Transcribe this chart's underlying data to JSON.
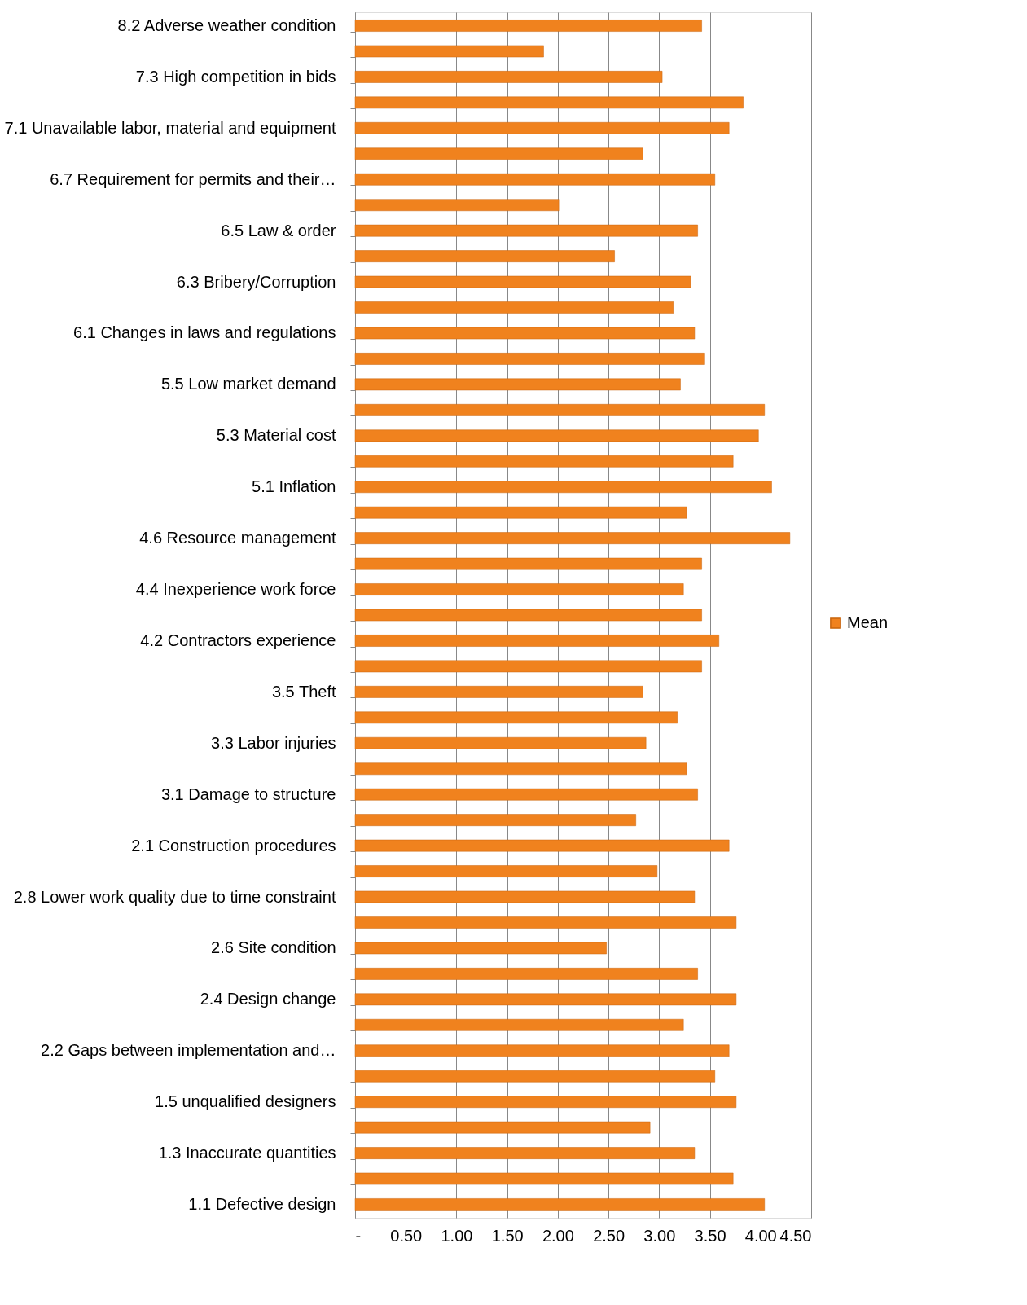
{
  "chart_data": {
    "type": "bar",
    "orientation": "horizontal",
    "categories": [
      "8.2 Adverse weather condition",
      null,
      "7.3 High competition in bids",
      null,
      "7.1 Unavailable labor, material and equipment",
      null,
      "6.7 Requirement for permits  and their…",
      null,
      "6.5 Law & order",
      null,
      "6.3 Bribery/Corruption",
      null,
      "6.1 Changes in laws and regulations",
      null,
      "5.5 Low market demand",
      null,
      "5.3 Material cost",
      null,
      "5.1 Inflation",
      null,
      "4.6 Resource management",
      null,
      "4.4 Inexperience work force",
      null,
      "4.2 Contractors experience",
      null,
      "3.5 Theft",
      null,
      "3.3 Labor injuries",
      null,
      "3.1 Damage to structure",
      null,
      "2.1 Construction procedures",
      null,
      "2.8 Lower work quality due  to time constraint",
      null,
      "2.6 Site condition",
      null,
      "2.4 Design change",
      null,
      "2.2 Gaps between implementation and…",
      null,
      "1.5 unqualified designers",
      null,
      "1.3 Inaccurate quantities",
      null,
      "1.1 Defective design"
    ],
    "series": [
      {
        "name": "Mean",
        "color": "#f0821e",
        "values": [
          3.42,
          1.86,
          3.03,
          3.83,
          3.69,
          2.84,
          3.55,
          2.01,
          3.38,
          2.56,
          3.31,
          3.14,
          3.35,
          3.45,
          3.21,
          4.04,
          3.98,
          3.73,
          4.11,
          3.27,
          4.29,
          3.42,
          3.24,
          3.42,
          3.59,
          3.42,
          2.84,
          3.18,
          2.87,
          3.27,
          3.38,
          2.77,
          3.69,
          2.98,
          3.35,
          3.76,
          2.48,
          3.38,
          3.76,
          3.24,
          3.69,
          3.55,
          3.76,
          2.91,
          3.35,
          3.73,
          4.04
        ]
      }
    ],
    "xlim": [
      0,
      4.5
    ],
    "xticks": [
      {
        "value": 0,
        "label": "-"
      },
      {
        "value": 0.5,
        "label": "0.50"
      },
      {
        "value": 1,
        "label": "1.00"
      },
      {
        "value": 1.5,
        "label": "1.50"
      },
      {
        "value": 2,
        "label": "2.00"
      },
      {
        "value": 2.5,
        "label": "2.50"
      },
      {
        "value": 3,
        "label": "3.00"
      },
      {
        "value": 3.5,
        "label": "3.50"
      },
      {
        "value": 4,
        "label": "4.00"
      },
      {
        "value": 4.5,
        "label": "4.50"
      }
    ],
    "grid": "x",
    "legend": "right"
  }
}
